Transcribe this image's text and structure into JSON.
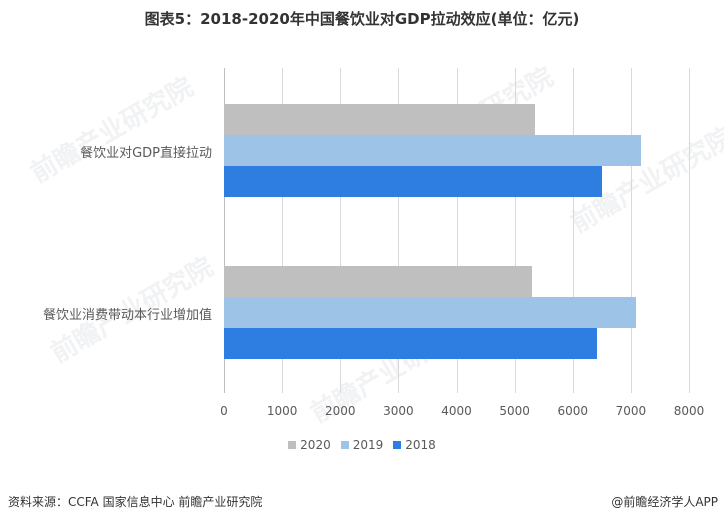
{
  "title": "图表5：2018-2020年中国餐饮业对GDP拉动效应(单位：亿元)",
  "chart_data": {
    "type": "bar",
    "orientation": "horizontal",
    "title": "图表5：2018-2020年中国餐饮业对GDP拉动效应(单位：亿元)",
    "categories": [
      "餐饮业对GDP直接拉动",
      "餐饮业消费带动本行业增加值"
    ],
    "series": [
      {
        "name": "2020",
        "color": "#bfbfbf",
        "values": [
          5350,
          5300
        ]
      },
      {
        "name": "2019",
        "color": "#9dc3e6",
        "values": [
          7170,
          7080
        ]
      },
      {
        "name": "2018",
        "color": "#2e7de1",
        "values": [
          6500,
          6420
        ]
      }
    ],
    "xlabel": "",
    "ylabel": "",
    "xlim": [
      0,
      8000
    ],
    "xticks": [
      "0",
      "1000",
      "2000",
      "3000",
      "4000",
      "5000",
      "6000",
      "7000",
      "8000"
    ],
    "grid": true,
    "legend_position": "bottom"
  },
  "legend": [
    {
      "label": "2020",
      "color": "#bfbfbf"
    },
    {
      "label": "2019",
      "color": "#9dc3e6"
    },
    {
      "label": "2018",
      "color": "#2e7de1"
    }
  ],
  "footer": {
    "source": "资料来源：CCFA 国家信息中心 前瞻产业研究院",
    "credit": "@前瞻经济学人APP"
  },
  "watermark": "前瞻产业研究院"
}
